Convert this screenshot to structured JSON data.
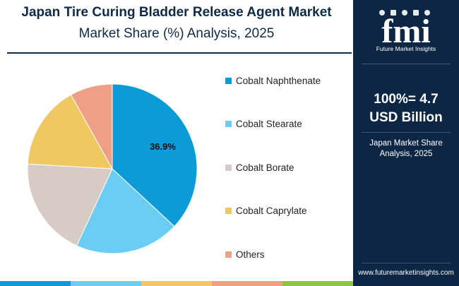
{
  "header": {
    "title_line1": "Japan Tire Curing Bladder Release Agent Market",
    "title_line2": "Market Share (%) Analysis, 2025"
  },
  "chart_data": {
    "type": "pie",
    "title": "Japan Tire Curing Bladder Release Agent Market Market Share (%) Analysis, 2025",
    "categories": [
      "Cobalt Naphthenate",
      "Cobalt Stearate",
      "Cobalt Borate",
      "Cobalt Caprylate",
      "Others"
    ],
    "values": [
      36.9,
      20.0,
      19.0,
      16.0,
      8.1
    ],
    "colors": [
      "#0b9bd6",
      "#6bcdf3",
      "#d7cbc6",
      "#f0c862",
      "#ee9f86"
    ],
    "data_labels": [
      "36.9%",
      "",
      "",
      "",
      ""
    ],
    "legend_position": "right",
    "start_angle_deg": 0,
    "direction": "clockwise"
  },
  "side_panel": {
    "brand_letters": "fmi",
    "brand_name": "Future Market Insights",
    "total_line1": "100%= 4.7",
    "total_line2": "USD Billion",
    "subtitle_line1": "Japan Market Share",
    "subtitle_line2": "Analysis, 2025",
    "url": "www.futuremarketinsights.com"
  },
  "colors": {
    "title": "#0e2a47",
    "panel_bg": "#0c2644",
    "bottom_bar": [
      "#0b9bd6",
      "#6bcdf3",
      "#f0c862",
      "#ee9f86",
      "#8dc63f"
    ]
  }
}
